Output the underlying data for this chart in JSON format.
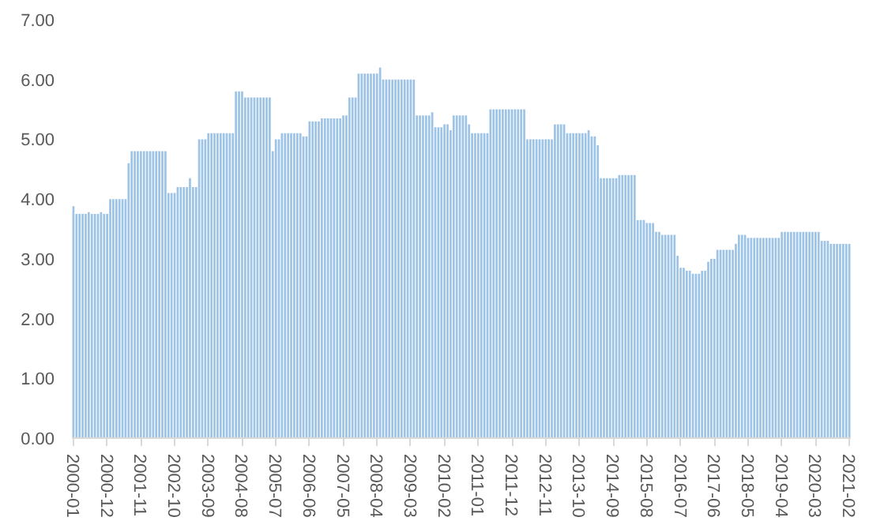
{
  "chart_data": {
    "type": "bar",
    "categories": [
      "2000-01",
      null,
      null,
      null,
      null,
      null,
      null,
      null,
      null,
      null,
      null,
      "2000-12",
      null,
      null,
      null,
      null,
      null,
      null,
      null,
      null,
      null,
      null,
      "2001-11",
      null,
      null,
      null,
      null,
      null,
      null,
      null,
      null,
      null,
      null,
      "2002-10",
      null,
      null,
      null,
      null,
      null,
      null,
      null,
      null,
      null,
      null,
      "2003-09",
      null,
      null,
      null,
      null,
      null,
      null,
      null,
      null,
      null,
      null,
      "2004-08",
      null,
      null,
      null,
      null,
      null,
      null,
      null,
      null,
      null,
      null,
      "2005-07",
      null,
      null,
      null,
      null,
      null,
      null,
      null,
      null,
      null,
      null,
      "2006-06",
      null,
      null,
      null,
      null,
      null,
      null,
      null,
      null,
      null,
      null,
      "2007-05",
      null,
      null,
      null,
      null,
      null,
      null,
      null,
      null,
      null,
      null,
      "2008-04",
      null,
      null,
      null,
      null,
      null,
      null,
      null,
      null,
      null,
      null,
      "2009-03",
      null,
      null,
      null,
      null,
      null,
      null,
      null,
      null,
      null,
      null,
      "2010-02",
      null,
      null,
      null,
      null,
      null,
      null,
      null,
      null,
      null,
      null,
      "2011-01",
      null,
      null,
      null,
      null,
      null,
      null,
      null,
      null,
      null,
      null,
      "2011-12",
      null,
      null,
      null,
      null,
      null,
      null,
      null,
      null,
      null,
      null,
      "2012-11",
      null,
      null,
      null,
      null,
      null,
      null,
      null,
      null,
      null,
      null,
      "2013-10",
      null,
      null,
      null,
      null,
      null,
      null,
      null,
      null,
      null,
      null,
      "2014-09",
      null,
      null,
      null,
      null,
      null,
      null,
      null,
      null,
      null,
      null,
      "2015-08",
      null,
      null,
      null,
      null,
      null,
      null,
      null,
      null,
      null,
      null,
      "2016-07",
      null,
      null,
      null,
      null,
      null,
      null,
      null,
      null,
      null,
      null,
      "2017-06",
      null,
      null,
      null,
      null,
      null,
      null,
      null,
      null,
      null,
      null,
      "2018-05",
      null,
      null,
      null,
      null,
      null,
      null,
      null,
      null,
      null,
      null,
      "2019-04",
      null,
      null,
      null,
      null,
      null,
      null,
      null,
      null,
      null,
      null,
      "2020-03",
      null,
      null,
      null,
      null,
      null,
      null,
      null,
      null,
      null,
      null,
      "2021-02"
    ],
    "series": [
      {
        "color": "#9dc3e6",
        "values": [
          3.88,
          3.75,
          3.75,
          3.75,
          3.75,
          3.78,
          3.75,
          3.75,
          3.75,
          3.78,
          3.75,
          3.75,
          4.0,
          4.0,
          4.0,
          4.0,
          4.0,
          4.0,
          4.6,
          4.8,
          4.8,
          4.8,
          4.8,
          4.8,
          4.8,
          4.8,
          4.8,
          4.8,
          4.8,
          4.8,
          4.8,
          4.1,
          4.1,
          4.1,
          4.2,
          4.2,
          4.2,
          4.2,
          4.35,
          4.2,
          4.2,
          5.0,
          5.0,
          5.0,
          5.1,
          5.1,
          5.1,
          5.1,
          5.1,
          5.1,
          5.1,
          5.1,
          5.1,
          5.8,
          5.8,
          5.8,
          5.7,
          5.7,
          5.7,
          5.7,
          5.7,
          5.7,
          5.7,
          5.7,
          5.7,
          4.8,
          5.0,
          5.0,
          5.1,
          5.1,
          5.1,
          5.1,
          5.1,
          5.1,
          5.1,
          5.05,
          5.05,
          5.3,
          5.3,
          5.3,
          5.3,
          5.35,
          5.35,
          5.35,
          5.35,
          5.35,
          5.35,
          5.35,
          5.4,
          5.4,
          5.7,
          5.7,
          5.7,
          6.1,
          6.1,
          6.1,
          6.1,
          6.1,
          6.1,
          6.1,
          6.2,
          6.0,
          6.0,
          6.0,
          6.0,
          6.0,
          6.0,
          6.0,
          6.0,
          6.0,
          6.0,
          6.0,
          5.4,
          5.4,
          5.4,
          5.4,
          5.4,
          5.45,
          5.2,
          5.2,
          5.2,
          5.25,
          5.25,
          5.15,
          5.4,
          5.4,
          5.4,
          5.4,
          5.4,
          5.25,
          5.1,
          5.1,
          5.1,
          5.1,
          5.1,
          5.1,
          5.5,
          5.5,
          5.5,
          5.5,
          5.5,
          5.5,
          5.5,
          5.5,
          5.5,
          5.5,
          5.5,
          5.5,
          5.0,
          5.0,
          5.0,
          5.0,
          5.0,
          5.0,
          5.0,
          5.0,
          5.0,
          5.25,
          5.25,
          5.25,
          5.25,
          5.1,
          5.1,
          5.1,
          5.1,
          5.1,
          5.1,
          5.1,
          5.15,
          5.05,
          5.05,
          4.9,
          4.35,
          4.35,
          4.35,
          4.35,
          4.35,
          4.35,
          4.4,
          4.4,
          4.4,
          4.4,
          4.4,
          4.4,
          3.65,
          3.65,
          3.65,
          3.6,
          3.6,
          3.6,
          3.45,
          3.45,
          3.4,
          3.4,
          3.4,
          3.4,
          3.4,
          3.05,
          2.85,
          2.85,
          2.8,
          2.8,
          2.75,
          2.75,
          2.75,
          2.8,
          2.8,
          2.95,
          3.0,
          3.0,
          3.15,
          3.15,
          3.15,
          3.15,
          3.15,
          3.15,
          3.25,
          3.4,
          3.4,
          3.4,
          3.35,
          3.35,
          3.35,
          3.35,
          3.35,
          3.35,
          3.35,
          3.35,
          3.35,
          3.35,
          3.35,
          3.45,
          3.45,
          3.45,
          3.45,
          3.45,
          3.45,
          3.45,
          3.45,
          3.45,
          3.45,
          3.45,
          3.45,
          3.45,
          3.3,
          3.3,
          3.3,
          3.25,
          3.25,
          3.25,
          3.25,
          3.25,
          3.25,
          3.25
        ]
      }
    ],
    "ylim": [
      0,
      7
    ],
    "yticks": [
      {
        "value": 0,
        "label": "0.00"
      },
      {
        "value": 1,
        "label": "1.00"
      },
      {
        "value": 2,
        "label": "2.00"
      },
      {
        "value": 3,
        "label": "3.00"
      },
      {
        "value": 4,
        "label": "4.00"
      },
      {
        "value": 5,
        "label": "5.00"
      },
      {
        "value": 6,
        "label": "6.00"
      },
      {
        "value": 7,
        "label": "7.00"
      }
    ],
    "grid": false
  }
}
